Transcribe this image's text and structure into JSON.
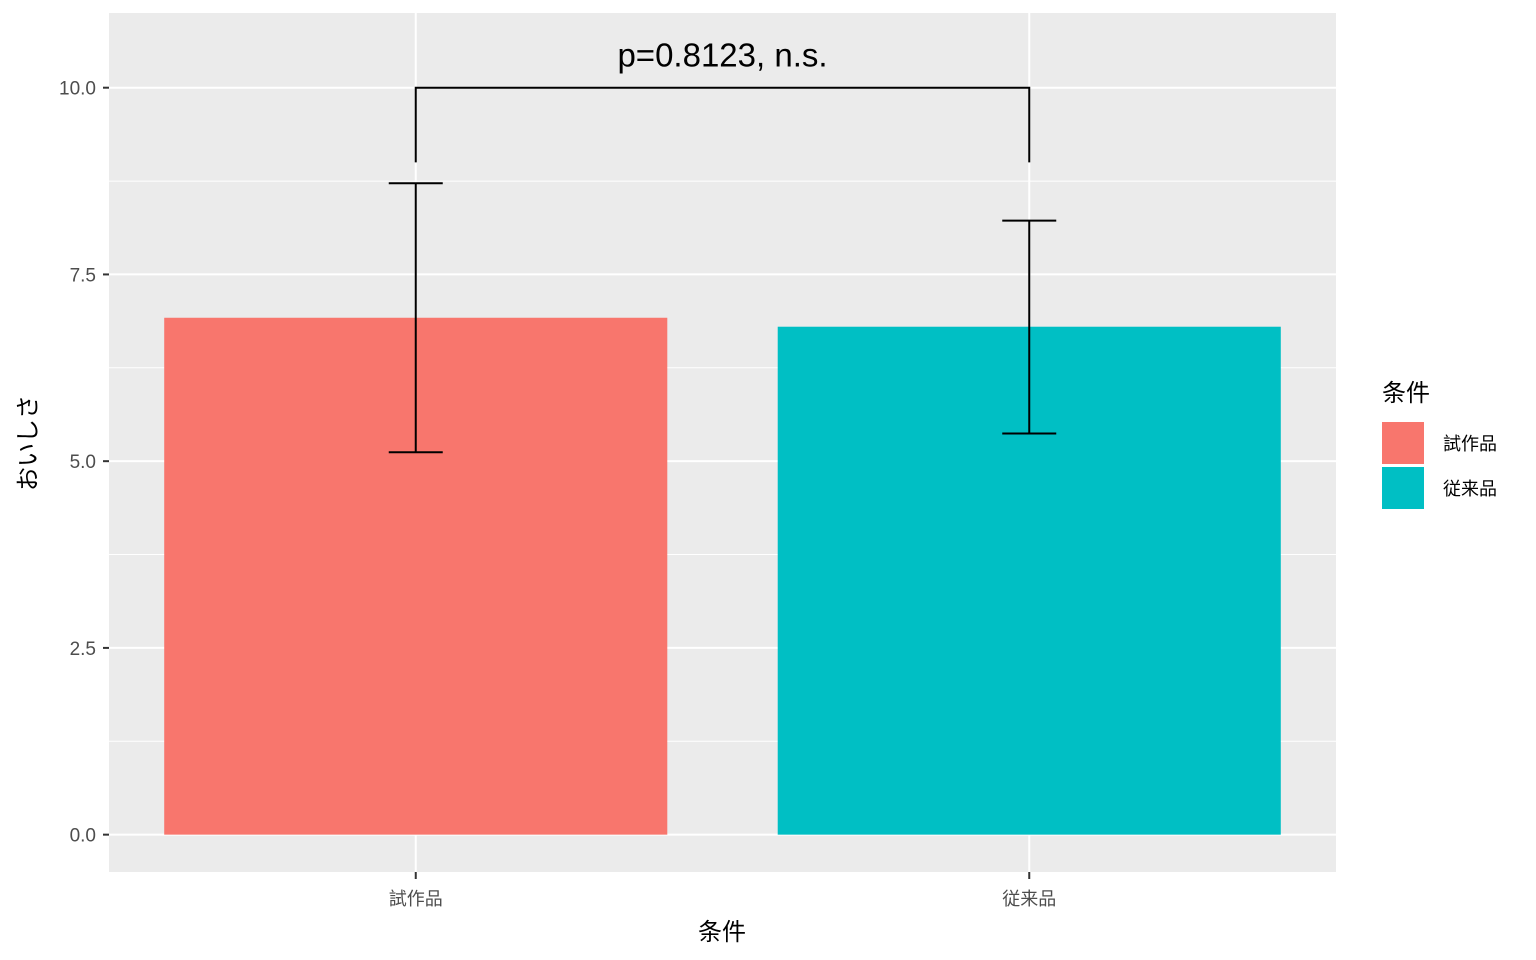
{
  "chart_data": {
    "type": "bar",
    "categories": [
      "試作品",
      "従来品"
    ],
    "values": [
      6.92,
      6.8
    ],
    "error_upper": [
      8.72,
      8.22
    ],
    "error_lower": [
      5.12,
      5.37
    ],
    "colors": [
      "#F8766D",
      "#00BFC4"
    ],
    "xlabel": "条件",
    "ylabel": "おいしさ",
    "ylim": [
      -0.5,
      11.0
    ],
    "yticks": [
      0.0,
      2.5,
      5.0,
      7.5,
      10.0
    ],
    "ytick_labels": [
      "0.0",
      "2.5",
      "5.0",
      "7.5",
      "10.0"
    ],
    "grid": true,
    "annotation": {
      "text": "p=0.8123, n.s.",
      "bracket_y": 10.0,
      "bracket_end_y": 9.0
    },
    "legend": {
      "title": "条件",
      "position": "right",
      "entries": [
        "試作品",
        "従来品"
      ]
    },
    "panel_background": "#EBEBEB",
    "grid_color": "#FFFFFF"
  }
}
